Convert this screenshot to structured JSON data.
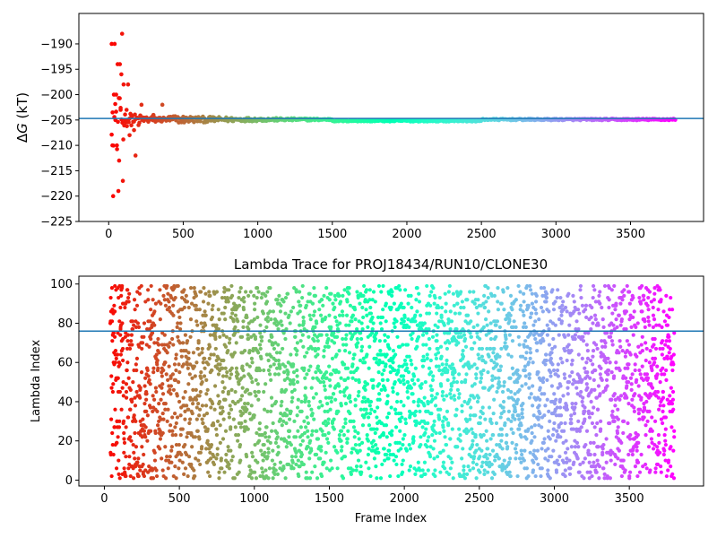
{
  "chart_data": [
    {
      "type": "scatter",
      "title": "",
      "xlabel": "",
      "ylabel": "ΔG (kT)",
      "ylabel_italic_part": "G",
      "xlim": [
        -200,
        3990
      ],
      "ylim": [
        -225,
        -184
      ],
      "xticks": [
        0,
        500,
        1000,
        1500,
        2000,
        2500,
        3000,
        3500
      ],
      "yticks": [
        -190,
        -195,
        -200,
        -205,
        -210,
        -215,
        -220,
        -225
      ],
      "reference_line": -204.7,
      "colormap": "rainbow (red → violet along frame index)",
      "n_frames": 3800,
      "series": [
        {
          "sample_points": [
            [
              20,
              -190
            ],
            [
              25,
              -210
            ],
            [
              30,
              -220
            ],
            [
              35,
              -200
            ],
            [
              40,
              -190
            ],
            [
              45,
              -205
            ],
            [
              50,
              -200
            ],
            [
              55,
              -210
            ],
            [
              60,
              -194
            ],
            [
              65,
              -219
            ],
            [
              70,
              -213
            ],
            [
              75,
              -194
            ],
            [
              80,
              -203
            ],
            [
              85,
              -196
            ],
            [
              90,
              -188
            ],
            [
              95,
              -217
            ],
            [
              100,
              -198
            ],
            [
              110,
              -205
            ],
            [
              120,
              -203
            ],
            [
              130,
              -198
            ],
            [
              140,
              -208
            ],
            [
              150,
              -204
            ],
            [
              170,
              -207
            ],
            [
              180,
              -212
            ],
            [
              200,
              -206
            ],
            [
              220,
              -202
            ],
            [
              260,
              -205
            ],
            [
              300,
              -204
            ],
            [
              360,
              -202
            ],
            [
              400,
              -204.5
            ]
          ],
          "convergence_value": -204.9
        }
      ]
    },
    {
      "type": "scatter",
      "title": "Lambda Trace for PROJ18434/RUN10/CLONE30",
      "xlabel": "Frame Index",
      "ylabel": "Lambda Index",
      "xlim": [
        -170,
        3995
      ],
      "ylim": [
        -3,
        104
      ],
      "xticks": [
        0,
        500,
        1000,
        1500,
        2000,
        2500,
        3000,
        3500
      ],
      "yticks": [
        0,
        20,
        40,
        60,
        80,
        100
      ],
      "reference_line": 76,
      "colormap": "rainbow (red → violet along frame index)",
      "n_frames": 3800,
      "y_range": [
        1,
        99
      ]
    }
  ]
}
